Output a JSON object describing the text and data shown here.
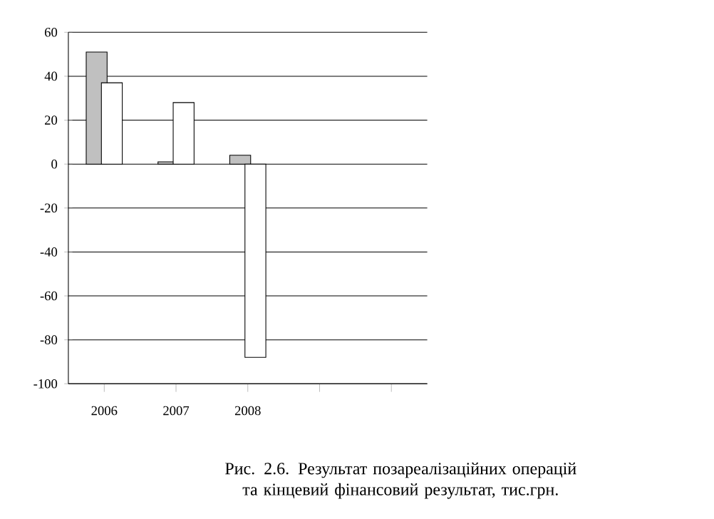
{
  "chart_data": {
    "type": "bar",
    "categories": [
      "2006",
      "2007",
      "2008",
      null,
      null
    ],
    "series": [
      {
        "color": "#c0c0c0",
        "values": [
          51,
          1,
          4,
          null,
          null
        ]
      },
      {
        "color": "#ffffff",
        "values": [
          37,
          28,
          -88,
          null,
          null
        ]
      }
    ],
    "ylim": [
      -100,
      60
    ],
    "yticks": [
      -100,
      -80,
      -60,
      -40,
      -20,
      0,
      20,
      40,
      60
    ],
    "grid": "y",
    "annotations": [
      "Рис. 2.6.  Результат позареалізаційних операцій та кінцевий фінансовий результат, тис.грн."
    ]
  }
}
